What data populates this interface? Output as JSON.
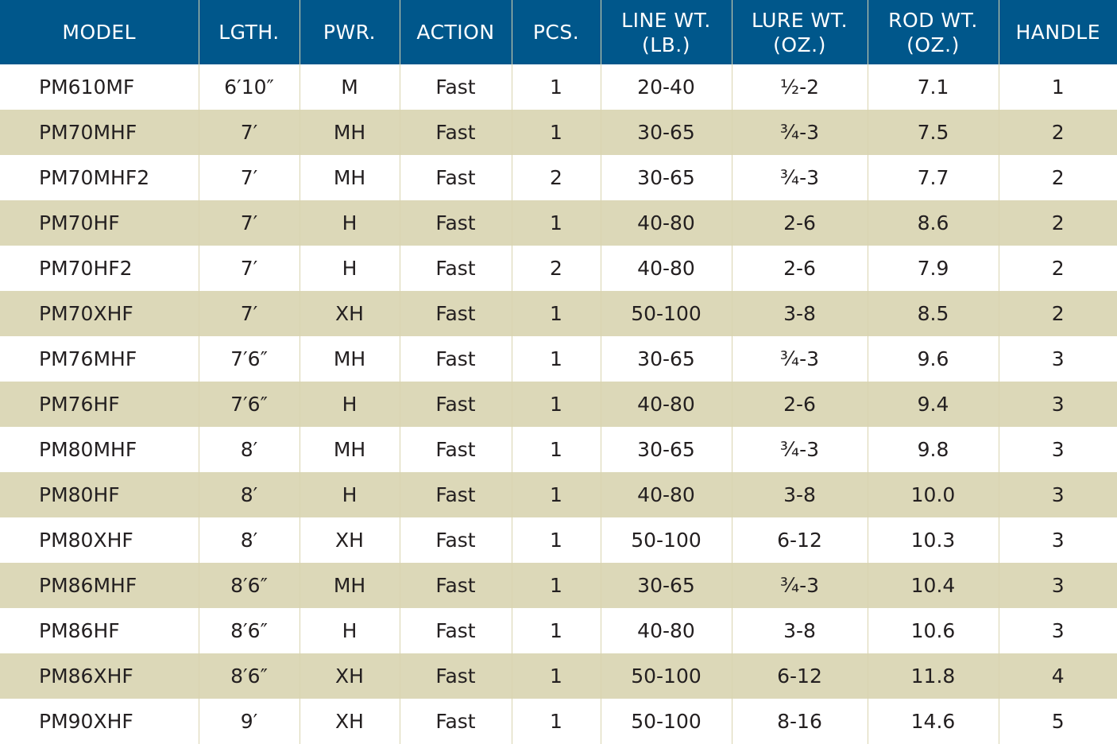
{
  "columns": [
    "MODEL",
    "LGTH.",
    "PWR.",
    "ACTION",
    "PCS.",
    "LINE WT.\n(LB.)",
    "LURE WT.\n(OZ.)",
    "ROD WT.\n(OZ.)",
    "HANDLE"
  ],
  "rows": [
    [
      "PM610MF",
      "6′10″",
      "M",
      "Fast",
      "1",
      "20-40",
      "½-2",
      "7.1",
      "1"
    ],
    [
      "PM70MHF",
      "7′",
      "MH",
      "Fast",
      "1",
      "30-65",
      "¾-3",
      "7.5",
      "2"
    ],
    [
      "PM70MHF2",
      "7′",
      "MH",
      "Fast",
      "2",
      "30-65",
      "¾-3",
      "7.7",
      "2"
    ],
    [
      "PM70HF",
      "7′",
      "H",
      "Fast",
      "1",
      "40-80",
      "2-6",
      "8.6",
      "2"
    ],
    [
      "PM70HF2",
      "7′",
      "H",
      "Fast",
      "2",
      "40-80",
      "2-6",
      "7.9",
      "2"
    ],
    [
      "PM70XHF",
      "7′",
      "XH",
      "Fast",
      "1",
      "50-100",
      "3-8",
      "8.5",
      "2"
    ],
    [
      "PM76MHF",
      "7′6″",
      "MH",
      "Fast",
      "1",
      "30-65",
      "¾-3",
      "9.6",
      "3"
    ],
    [
      "PM76HF",
      "7′6″",
      "H",
      "Fast",
      "1",
      "40-80",
      "2-6",
      "9.4",
      "3"
    ],
    [
      "PM80MHF",
      "8′",
      "MH",
      "Fast",
      "1",
      "30-65",
      "¾-3",
      "9.8",
      "3"
    ],
    [
      "PM80HF",
      "8′",
      "H",
      "Fast",
      "1",
      "40-80",
      "3-8",
      "10.0",
      "3"
    ],
    [
      "PM80XHF",
      "8′",
      "XH",
      "Fast",
      "1",
      "50-100",
      "6-12",
      "10.3",
      "3"
    ],
    [
      "PM86MHF",
      "8′6″",
      "MH",
      "Fast",
      "1",
      "30-65",
      "¾-3",
      "10.4",
      "3"
    ],
    [
      "PM86HF",
      "8′6″",
      "H",
      "Fast",
      "1",
      "40-80",
      "3-8",
      "10.6",
      "3"
    ],
    [
      "PM86XHF",
      "8′6″",
      "XH",
      "Fast",
      "1",
      "50-100",
      "6-12",
      "11.8",
      "4"
    ],
    [
      "PM90XHF",
      "9′",
      "XH",
      "Fast",
      "1",
      "50-100",
      "8-16",
      "14.6",
      "5"
    ]
  ],
  "colors": {
    "header": "#00578b",
    "stripe": "#dcd8b8"
  }
}
